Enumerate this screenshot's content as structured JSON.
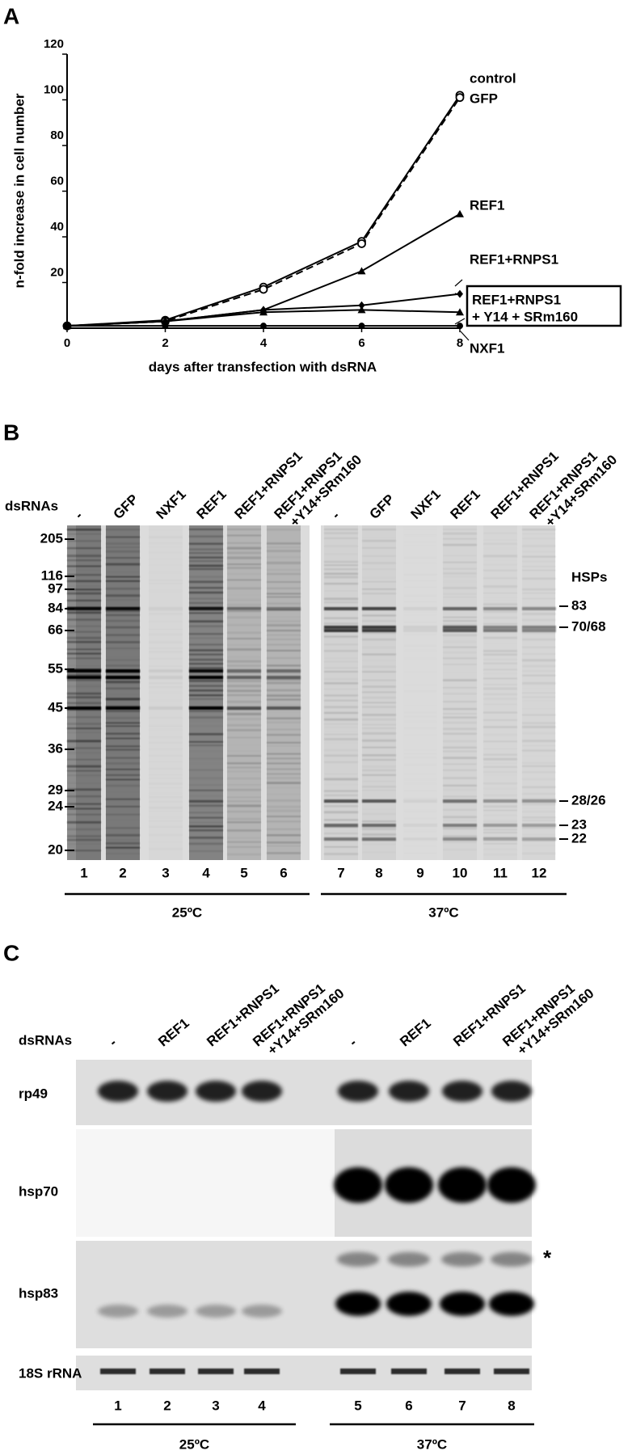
{
  "chart_data": {
    "type": "line",
    "panel_label": "A",
    "xlabel": "days after transfection with dsRNA",
    "ylabel": "n-fold increase in cell number",
    "x": [
      0,
      2,
      4,
      6,
      8
    ],
    "xlim": [
      0,
      8
    ],
    "ylim": [
      0,
      120
    ],
    "xticks": [
      0,
      2,
      4,
      6,
      8
    ],
    "yticks": [
      20,
      40,
      60,
      80,
      100,
      120
    ],
    "series": [
      {
        "name": "control",
        "color": "#000000",
        "marker": "open-circle",
        "dash": false,
        "values": [
          1,
          3.5,
          18,
          38,
          102
        ]
      },
      {
        "name": "GFP",
        "color": "#000000",
        "marker": "open-circle",
        "dash": true,
        "values": [
          1,
          3,
          17,
          37,
          101
        ]
      },
      {
        "name": "REF1",
        "color": "#000000",
        "marker": "triangle",
        "dash": false,
        "values": [
          1,
          3,
          8,
          25,
          50
        ]
      },
      {
        "name": "REF1+RNPS1",
        "color": "#000000",
        "marker": "diamond",
        "dash": false,
        "values": [
          1,
          3,
          8,
          10,
          15
        ]
      },
      {
        "name": "REF1+RNPS1",
        "name_line2": "+ Y14 + SRm160",
        "boxed": true,
        "color": "#000000",
        "marker": "triangle",
        "dash": false,
        "values": [
          1,
          3,
          7,
          8,
          7
        ]
      },
      {
        "name": "NXF1",
        "color": "#000000",
        "marker": "circle",
        "dash": false,
        "values": [
          1,
          1,
          1,
          1,
          1
        ]
      }
    ]
  },
  "panel_b": {
    "label": "B",
    "dsrnas_label": "dsRNAs",
    "markers": [
      205,
      116,
      97,
      84,
      66,
      55,
      45,
      36,
      29,
      24,
      20
    ],
    "hsp_title": "HSPs",
    "hsps": [
      "83",
      "70/68",
      "28/26",
      "23",
      "22"
    ],
    "groups": [
      {
        "temperature": "25ºC",
        "lanes": [
          {
            "label": "-",
            "number": 1
          },
          {
            "label": "GFP",
            "number": 2
          },
          {
            "label": "NXF1",
            "number": 3
          },
          {
            "label": "REF1",
            "number": 4
          },
          {
            "label": "REF1+RNPS1",
            "number": 5
          },
          {
            "label": "REF1+RNPS1",
            "label_line2": "+Y14+SRm160",
            "number": 6
          }
        ]
      },
      {
        "temperature": "37ºC",
        "lanes": [
          {
            "label": "-",
            "number": 7
          },
          {
            "label": "GFP",
            "number": 8
          },
          {
            "label": "NXF1",
            "number": 9
          },
          {
            "label": "REF1",
            "number": 10
          },
          {
            "label": "REF1+RNPS1",
            "number": 11
          },
          {
            "label": "REF1+RNPS1",
            "label_line2": "+Y14+SRm160",
            "number": 12
          }
        ]
      }
    ]
  },
  "panel_c": {
    "label": "C",
    "dsrnas_label": "dsRNAs",
    "rows": [
      "rp49",
      "hsp70",
      "hsp83",
      "18S rRNA"
    ],
    "asterisk": "*",
    "groups": [
      {
        "temperature": "25ºC",
        "lanes": [
          {
            "label": "-",
            "number": 1
          },
          {
            "label": "REF1",
            "number": 2
          },
          {
            "label": "REF1+RNPS1",
            "number": 3
          },
          {
            "label": "REF1+RNPS1",
            "label_line2": "+Y14+SRm160",
            "number": 4
          }
        ]
      },
      {
        "temperature": "37ºC",
        "lanes": [
          {
            "label": "-",
            "number": 5
          },
          {
            "label": "REF1",
            "number": 6
          },
          {
            "label": "REF1+RNPS1",
            "number": 7
          },
          {
            "label": "REF1+RNPS1",
            "label_line2": "+Y14+SRm160",
            "number": 8
          }
        ]
      }
    ]
  }
}
